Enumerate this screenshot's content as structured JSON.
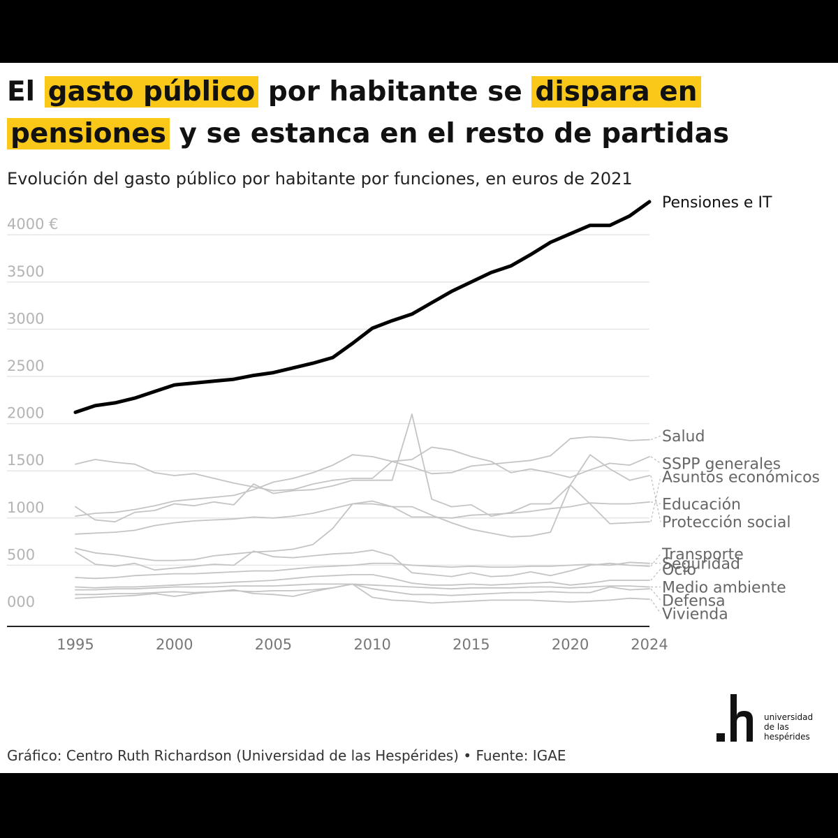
{
  "title": {
    "parts": [
      {
        "text": "El ",
        "highlight": false
      },
      {
        "text": "gasto público",
        "highlight": true
      },
      {
        "text": " por habitante se ",
        "highlight": false
      },
      {
        "text": "dispara en",
        "highlight": true
      },
      {
        "text": "pensiones",
        "highlight": true
      },
      {
        "text": " y se estanca en el resto de partidas",
        "highlight": false
      }
    ]
  },
  "subtitle": "Evolución del gasto público por habitante por funciones, en euros de 2021",
  "footer": "Gráfico: Centro Ruth Richardson (Universidad de las Hespérides) • Fuente: IGAE",
  "logo": {
    "mark": ".h",
    "lines": [
      "universidad",
      "de las",
      "hespérides"
    ]
  },
  "colors": {
    "highlight": "#f9c818",
    "main_line": "#000000",
    "other_lines": "#c4c4c4",
    "grid": "#e6e6e6"
  },
  "chart_data": {
    "type": "line",
    "title": "El gasto público por habitante se dispara en pensiones y se estanca en el resto de partidas",
    "subtitle": "Evolución del gasto público por habitante por funciones, en euros de 2021",
    "x": [
      1995,
      1996,
      1997,
      1998,
      1999,
      2000,
      2001,
      2002,
      2003,
      2004,
      2005,
      2006,
      2007,
      2008,
      2009,
      2010,
      2011,
      2012,
      2013,
      2014,
      2015,
      2016,
      2017,
      2018,
      2019,
      2020,
      2021,
      2022,
      2023,
      2024
    ],
    "xticks": [
      "1995",
      "2000",
      "2005",
      "2010",
      "2015",
      "2020",
      "2024"
    ],
    "yticks": [
      "000",
      "500",
      "1000",
      "1500",
      "2000",
      "2500",
      "3000",
      "3500",
      "4000 €"
    ],
    "ylim": [
      -150,
      4300
    ],
    "grid": true,
    "legend": "direct labels at right end",
    "series": [
      {
        "name": "Pensiones e IT",
        "highlight": true,
        "label_value": 4350,
        "values": [
          2120,
          2190,
          2220,
          2270,
          2340,
          2410,
          2430,
          2450,
          2470,
          2510,
          2540,
          2590,
          2640,
          2700,
          2850,
          3010,
          3090,
          3160,
          3280,
          3400,
          3500,
          3600,
          3670,
          3790,
          3920,
          4010,
          4100,
          4100,
          4200,
          4350
        ]
      },
      {
        "name": "Salud",
        "label_value": 1870,
        "values": [
          1020,
          1050,
          1060,
          1090,
          1130,
          1180,
          1200,
          1220,
          1240,
          1300,
          1380,
          1420,
          1480,
          1560,
          1670,
          1650,
          1600,
          1540,
          1470,
          1480,
          1550,
          1570,
          1590,
          1610,
          1660,
          1840,
          1860,
          1850,
          1820,
          1830
        ]
      },
      {
        "name": "SSPP generales",
        "label_value": 1580,
        "values": [
          1570,
          1620,
          1590,
          1570,
          1480,
          1450,
          1470,
          1420,
          1370,
          1330,
          1290,
          1300,
          1360,
          1400,
          1420,
          1420,
          1600,
          1620,
          1750,
          1720,
          1650,
          1600,
          1480,
          1520,
          1480,
          1430,
          1510,
          1580,
          1560,
          1650
        ]
      },
      {
        "name": "Asuntos económicos",
        "label_value": 1440,
        "values": [
          1120,
          980,
          960,
          1060,
          1080,
          1150,
          1130,
          1170,
          1140,
          1360,
          1260,
          1290,
          1300,
          1340,
          1400,
          1400,
          1400,
          2100,
          1200,
          1120,
          1140,
          1020,
          1060,
          1150,
          1150,
          1350,
          1150,
          940,
          950,
          960
        ]
      },
      {
        "name": "Educación",
        "label_value": 1150,
        "values": [
          830,
          840,
          850,
          870,
          920,
          950,
          970,
          980,
          990,
          1010,
          1000,
          1020,
          1050,
          1100,
          1150,
          1150,
          1120,
          1010,
          1010,
          1000,
          1030,
          1040,
          1050,
          1070,
          1100,
          1120,
          1160,
          1150,
          1150,
          1170
        ]
      },
      {
        "name": "Protección social",
        "label_value": 960,
        "values": [
          680,
          630,
          610,
          580,
          550,
          550,
          560,
          600,
          620,
          640,
          650,
          670,
          720,
          890,
          1150,
          1180,
          1120,
          1120,
          1030,
          950,
          880,
          840,
          800,
          810,
          850,
          1350,
          1670,
          1520,
          1400,
          1450
        ]
      },
      {
        "name": "Transporte",
        "label_value": 620,
        "values": [
          640,
          510,
          490,
          520,
          450,
          470,
          490,
          510,
          500,
          650,
          590,
          580,
          600,
          620,
          630,
          660,
          600,
          420,
          400,
          380,
          420,
          380,
          390,
          430,
          390,
          440,
          500,
          520,
          500,
          490
        ]
      },
      {
        "name": "Seguridad",
        "label_value": 520,
        "values": [
          370,
          360,
          370,
          390,
          400,
          410,
          410,
          420,
          430,
          440,
          440,
          460,
          480,
          490,
          500,
          520,
          520,
          500,
          490,
          480,
          490,
          480,
          480,
          490,
          490,
          500,
          510,
          500,
          530,
          520
        ]
      },
      {
        "name": "Ocio",
        "label_value": 460,
        "values": [
          270,
          260,
          270,
          270,
          280,
          290,
          300,
          310,
          320,
          330,
          340,
          360,
          380,
          390,
          400,
          400,
          360,
          310,
          290,
          290,
          300,
          290,
          300,
          310,
          320,
          290,
          310,
          340,
          340,
          340
        ]
      },
      {
        "name": "Medio ambiente",
        "label_value": 270,
        "values": [
          240,
          240,
          250,
          250,
          260,
          270,
          270,
          270,
          280,
          280,
          280,
          290,
          300,
          300,
          300,
          290,
          280,
          270,
          260,
          250,
          260,
          260,
          260,
          270,
          270,
          260,
          270,
          280,
          280,
          270
        ]
      },
      {
        "name": "Defensa",
        "label_value": 130,
        "values": [
          190,
          190,
          200,
          200,
          210,
          220,
          210,
          220,
          230,
          220,
          230,
          230,
          240,
          260,
          300,
          250,
          220,
          190,
          190,
          180,
          190,
          200,
          210,
          210,
          220,
          210,
          210,
          270,
          240,
          250
        ]
      },
      {
        "name": "Vivienda",
        "label_value": -10,
        "values": [
          150,
          160,
          170,
          180,
          200,
          170,
          200,
          220,
          240,
          200,
          190,
          170,
          220,
          260,
          300,
          160,
          130,
          120,
          100,
          110,
          120,
          130,
          130,
          130,
          120,
          110,
          120,
          130,
          150,
          140
        ]
      }
    ]
  }
}
